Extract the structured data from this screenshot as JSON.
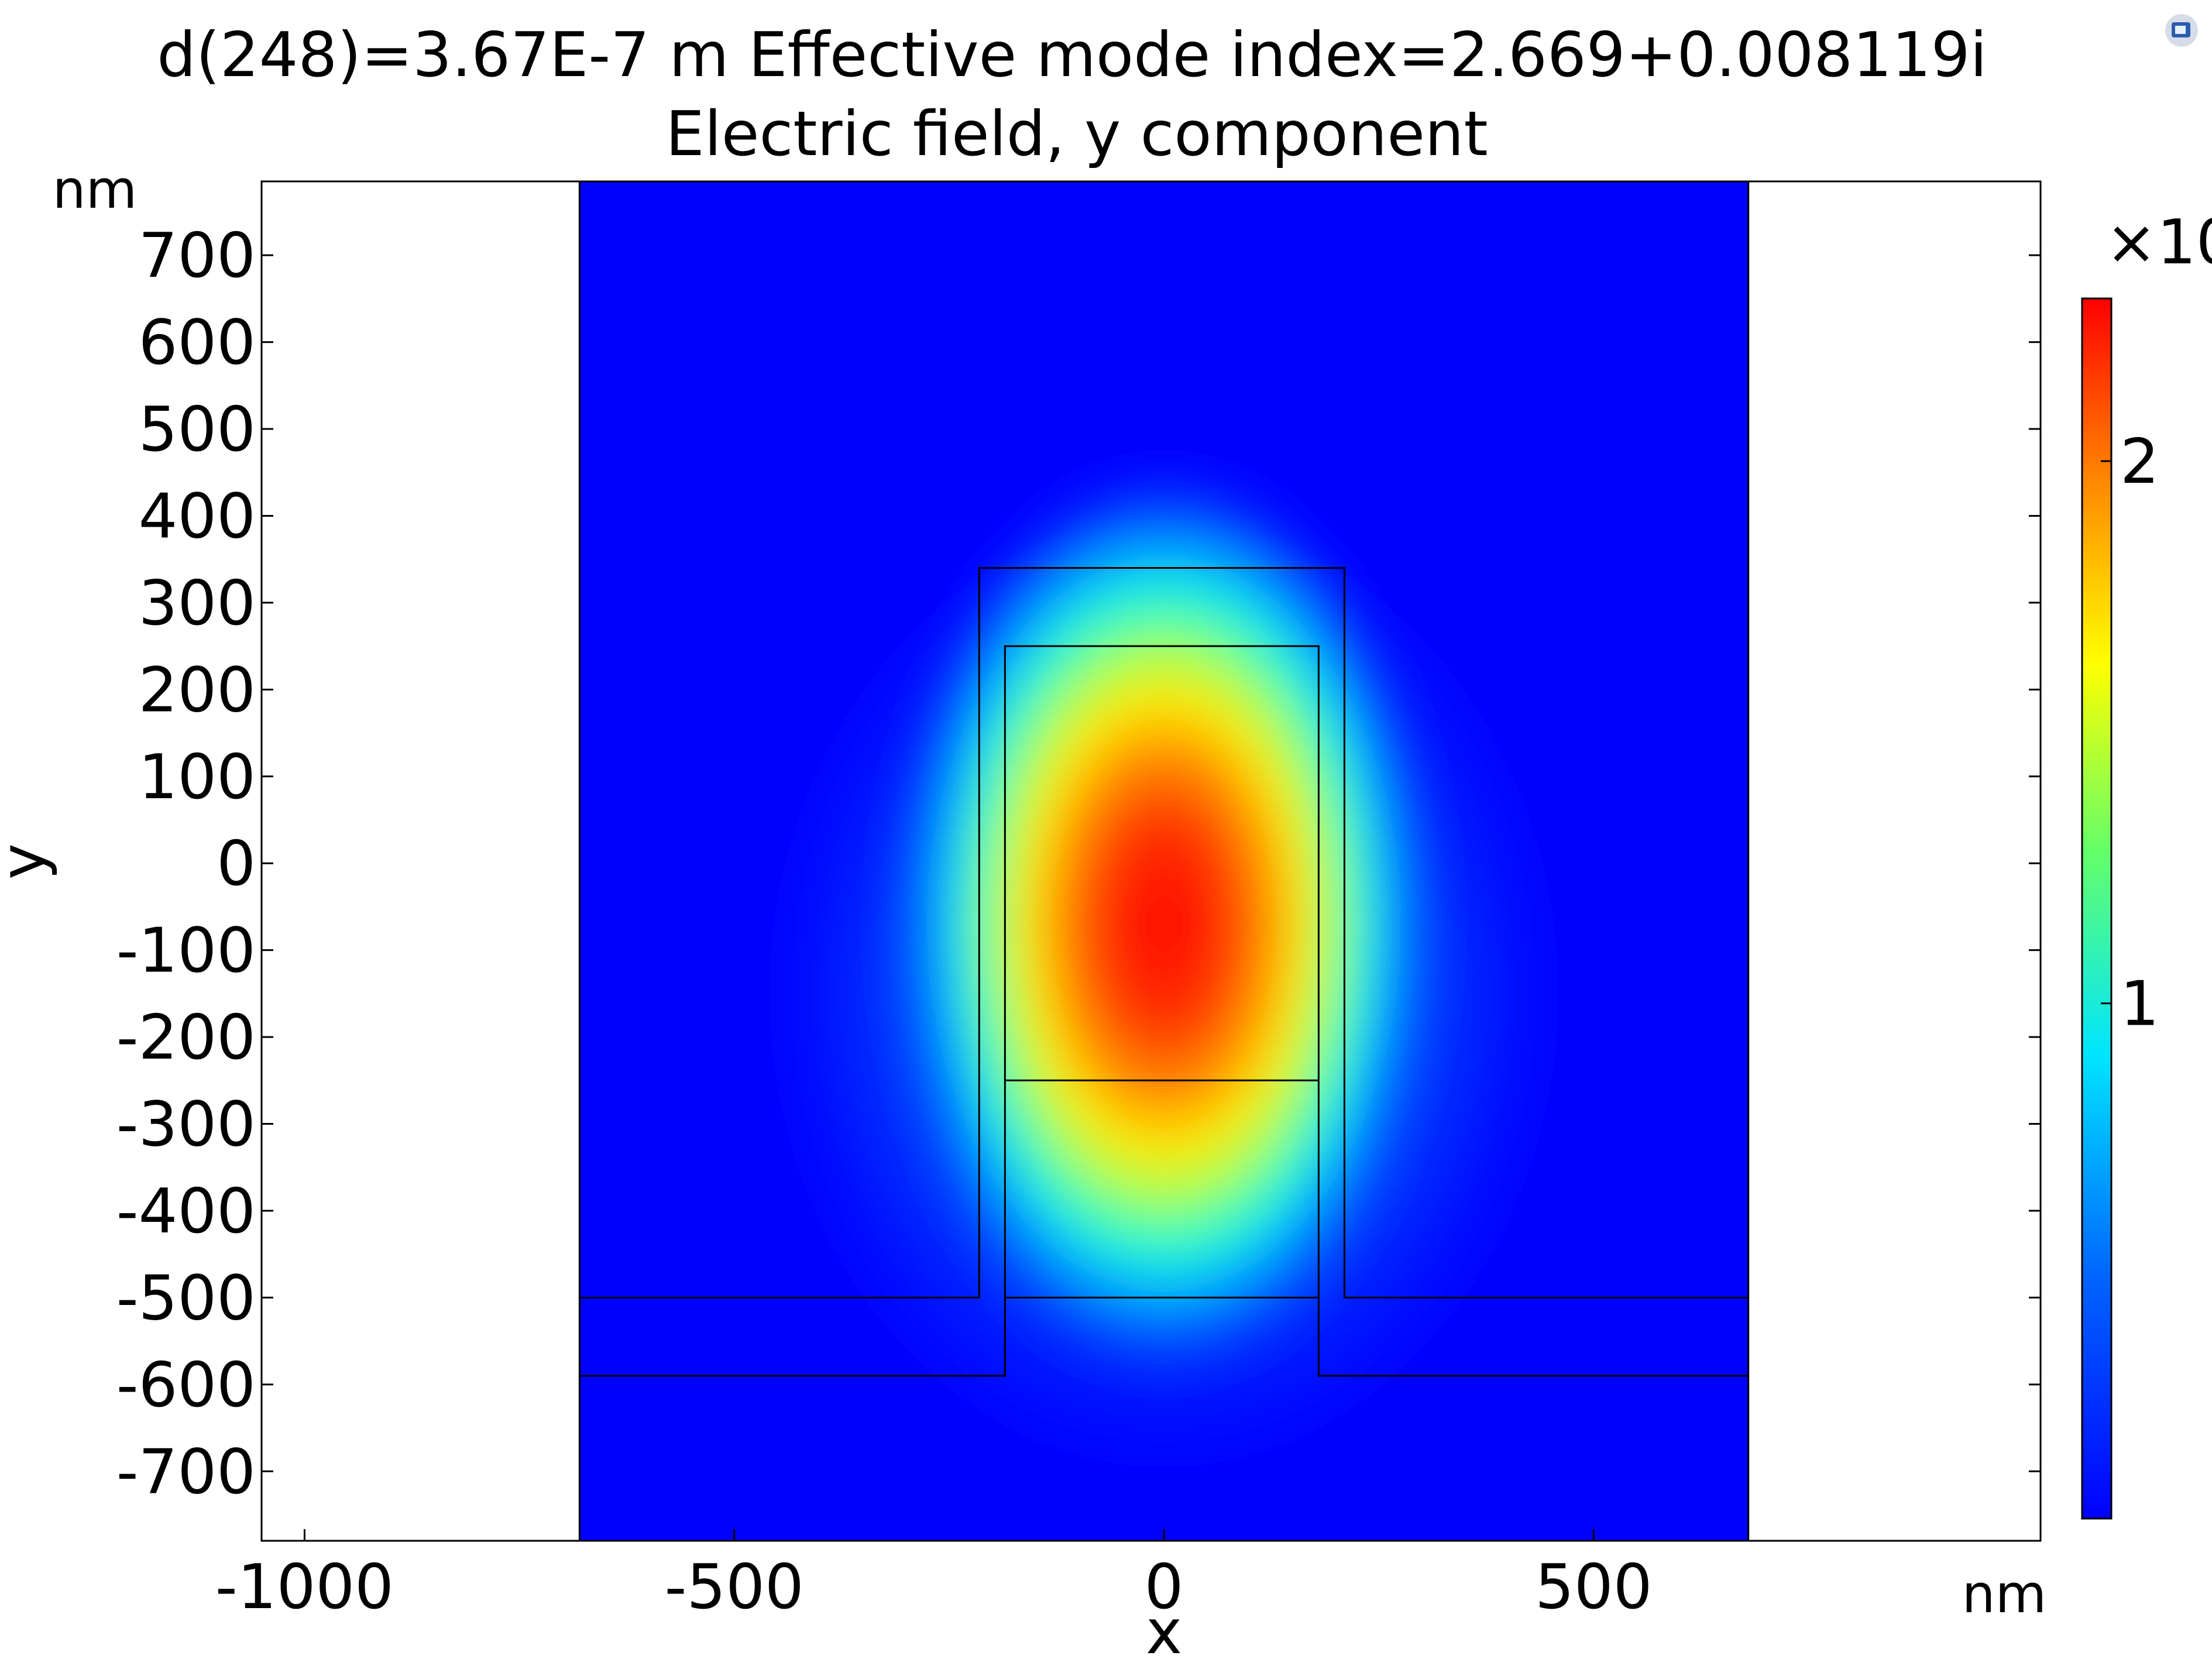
{
  "window": {
    "app_icon": "comsol-app-icon"
  },
  "chart_data": {
    "type": "heatmap",
    "title": "d(248)=3.67E-7 m Effective mode index=2.669+0.008119i",
    "subtitle": "Electric field, y component",
    "xlabel": "x",
    "ylabel": "y",
    "x_unit": "nm",
    "y_unit": "nm",
    "xlim": [
      -1050,
      1020
    ],
    "ylim": [
      -780,
      785
    ],
    "x_ticks": [
      -1000,
      -500,
      0,
      500
    ],
    "x_tick_labels": [
      "-1000",
      "-500",
      "0",
      "500"
    ],
    "y_ticks": [
      700,
      600,
      500,
      400,
      300,
      200,
      100,
      0,
      -100,
      -200,
      -300,
      -400,
      -500,
      -600,
      -700
    ],
    "y_tick_labels": [
      "700",
      "600",
      "500",
      "400",
      "300",
      "200",
      "100",
      "0",
      "-100",
      "-200",
      "-300",
      "-400",
      "-500",
      "-600",
      "-700"
    ],
    "grid": false,
    "colormap": "rainbow",
    "field_peak": {
      "x": 0,
      "y": -70,
      "value": 2.3
    },
    "colorbar": {
      "label": "×10",
      "ticks": [
        1,
        2
      ],
      "tick_labels": [
        "1",
        "2"
      ],
      "range": [
        0.05,
        2.3
      ]
    },
    "geometry": {
      "domain": {
        "x": [
          -680,
          680
        ],
        "y": [
          -780,
          785
        ]
      },
      "outer_rib": {
        "x": [
          -215,
          210
        ],
        "y": [
          -500,
          340
        ]
      },
      "core": {
        "x": [
          -185,
          180
        ],
        "y": [
          -500,
          250
        ]
      },
      "core_interface_y": -250,
      "slab_top_y": -500,
      "slab_bottom_y": -590
    }
  }
}
